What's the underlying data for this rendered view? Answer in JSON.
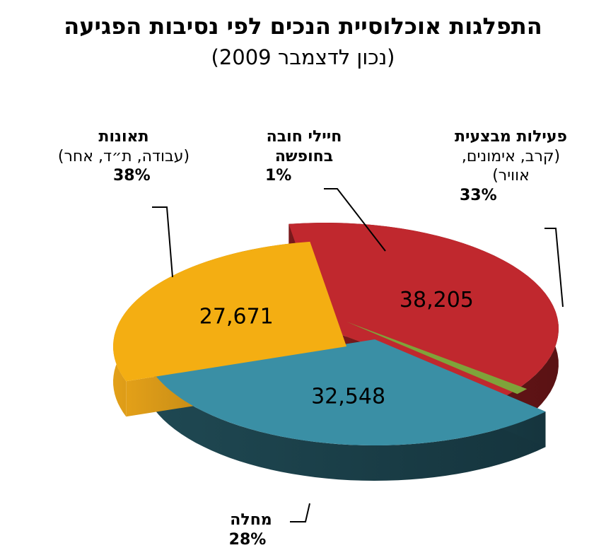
{
  "title": "התפלגות אוכלוסיית הנכים לפי נסיבות הפגיעה",
  "subtitle": "(נכון לדצמבר 2009)",
  "chart_data": {
    "type": "pie",
    "title": "התפלגות אוכלוסיית הנכים לפי נסיבות הפגיעה",
    "subtitle": "(נכון לדצמבר 2009)",
    "legend": "none",
    "slices": [
      {
        "label": "תאונות",
        "detail": "(עבודה, ת״ד, אחר)",
        "value": 38205,
        "value_label": "38,205",
        "percent": "38%",
        "color": "#c0282e"
      },
      {
        "label": "חיילי חובה בחופשה",
        "detail": "",
        "value": 1000,
        "value_label": "",
        "percent": "1%",
        "color": "#7fa33a"
      },
      {
        "label": "פעילות מבצעית",
        "detail": "(קרב, אימונים, אוויר)",
        "value": 32548,
        "value_label": "32,548",
        "percent": "33%",
        "color": "#3a8fa5"
      },
      {
        "label": "מחלה",
        "detail": "",
        "value": 27671,
        "value_label": "27,671",
        "percent": "28%",
        "color": "#f4ae12"
      }
    ]
  }
}
